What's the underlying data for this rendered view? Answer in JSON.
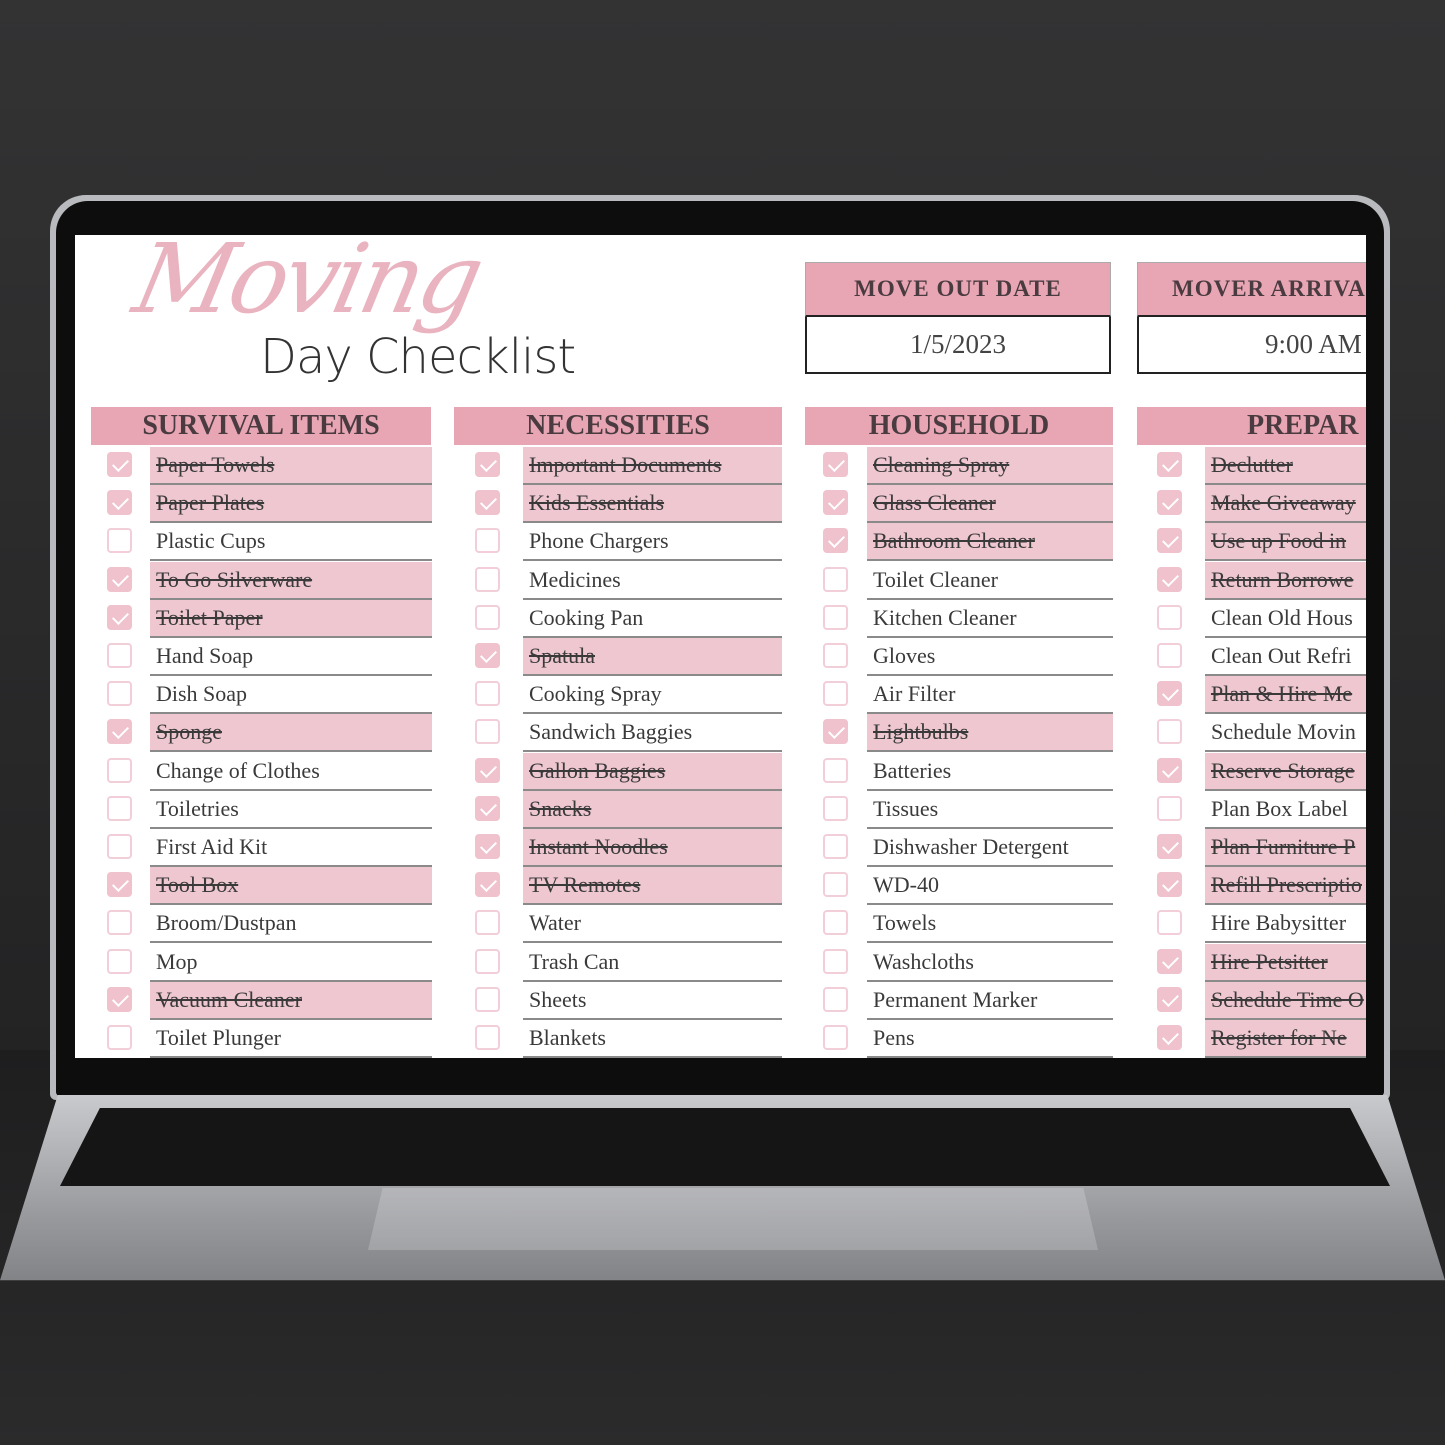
{
  "title": {
    "script": "Moving",
    "main": "Day Checklist"
  },
  "info": [
    {
      "label": "MOVE OUT DATE",
      "value": "1/5/2023"
    },
    {
      "label": "MOVER ARRIVA",
      "value": "9:00 AM"
    }
  ],
  "colors": {
    "header": "#e8a6b4",
    "checked_row": "#efc7d1",
    "checkbox": "#efc2cd"
  },
  "columns": [
    {
      "title": "SURVIVAL ITEMS",
      "items": [
        {
          "label": "Paper Towels",
          "checked": true
        },
        {
          "label": "Paper Plates",
          "checked": true
        },
        {
          "label": "Plastic Cups",
          "checked": false
        },
        {
          "label": "To Go Silverware",
          "checked": true
        },
        {
          "label": "Toilet Paper",
          "checked": true
        },
        {
          "label": "Hand Soap",
          "checked": false
        },
        {
          "label": "Dish Soap",
          "checked": false
        },
        {
          "label": "Sponge",
          "checked": true
        },
        {
          "label": "Change of Clothes",
          "checked": false
        },
        {
          "label": "Toiletries",
          "checked": false
        },
        {
          "label": "First Aid Kit",
          "checked": false
        },
        {
          "label": "Tool Box",
          "checked": true
        },
        {
          "label": "Broom/Dustpan",
          "checked": false
        },
        {
          "label": "Mop",
          "checked": false
        },
        {
          "label": "Vacuum Cleaner",
          "checked": true
        },
        {
          "label": "Toilet Plunger",
          "checked": false
        }
      ]
    },
    {
      "title": "NECESSITIES",
      "items": [
        {
          "label": "Important Documents",
          "checked": true
        },
        {
          "label": "Kids Essentials",
          "checked": true
        },
        {
          "label": "Phone Chargers",
          "checked": false
        },
        {
          "label": "Medicines",
          "checked": false
        },
        {
          "label": "Cooking Pan",
          "checked": false
        },
        {
          "label": "Spatula",
          "checked": true
        },
        {
          "label": "Cooking Spray",
          "checked": false
        },
        {
          "label": "Sandwich Baggies",
          "checked": false
        },
        {
          "label": "Gallon Baggies",
          "checked": true
        },
        {
          "label": "Snacks",
          "checked": true
        },
        {
          "label": "Instant Noodles",
          "checked": true
        },
        {
          "label": "TV Remotes",
          "checked": true
        },
        {
          "label": "Water",
          "checked": false
        },
        {
          "label": "Trash Can",
          "checked": false
        },
        {
          "label": "Sheets",
          "checked": false
        },
        {
          "label": "Blankets",
          "checked": false
        }
      ]
    },
    {
      "title": "HOUSEHOLD",
      "items": [
        {
          "label": "Cleaning Spray",
          "checked": true
        },
        {
          "label": "Glass Cleaner",
          "checked": true
        },
        {
          "label": "Bathroom Cleaner",
          "checked": true
        },
        {
          "label": "Toilet Cleaner",
          "checked": false
        },
        {
          "label": "Kitchen Cleaner",
          "checked": false
        },
        {
          "label": "Gloves",
          "checked": false
        },
        {
          "label": "Air Filter",
          "checked": false
        },
        {
          "label": "Lightbulbs",
          "checked": true
        },
        {
          "label": "Batteries",
          "checked": false
        },
        {
          "label": "Tissues",
          "checked": false
        },
        {
          "label": "Dishwasher Detergent",
          "checked": false
        },
        {
          "label": "WD-40",
          "checked": false
        },
        {
          "label": "Towels",
          "checked": false
        },
        {
          "label": "Washcloths",
          "checked": false
        },
        {
          "label": "Permanent Marker",
          "checked": false
        },
        {
          "label": "Pens",
          "checked": false
        }
      ]
    },
    {
      "title": "PREPAR",
      "items": [
        {
          "label": "Declutter",
          "checked": true
        },
        {
          "label": "Make Giveaway",
          "checked": true
        },
        {
          "label": "Use up Food in",
          "checked": true
        },
        {
          "label": "Return Borrowe",
          "checked": true
        },
        {
          "label": "Clean Old Hous",
          "checked": false
        },
        {
          "label": "Clean Out Refri",
          "checked": false
        },
        {
          "label": "Plan & Hire Me",
          "checked": true
        },
        {
          "label": "Schedule Movin",
          "checked": false
        },
        {
          "label": "Reserve Storage",
          "checked": true
        },
        {
          "label": "Plan Box Label",
          "checked": false
        },
        {
          "label": "Plan Furniture P",
          "checked": true
        },
        {
          "label": "Refill Prescriptio",
          "checked": true
        },
        {
          "label": "Hire Babysitter",
          "checked": false
        },
        {
          "label": "Hire Petsitter",
          "checked": true
        },
        {
          "label": "Schedule Time O",
          "checked": true
        },
        {
          "label": "Register for Ne",
          "checked": true
        }
      ]
    }
  ]
}
